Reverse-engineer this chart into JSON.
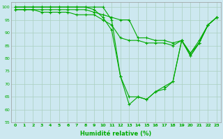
{
  "xlabel": "Humidité relative (%)",
  "background_color": "#cde8f0",
  "grid_color": "#aacfbf",
  "line_color": "#00aa00",
  "ylim": [
    55,
    102
  ],
  "xlim": [
    -0.5,
    23.5
  ],
  "yticks": [
    55,
    60,
    65,
    70,
    75,
    80,
    85,
    90,
    95,
    100
  ],
  "xticks": [
    0,
    1,
    2,
    3,
    4,
    5,
    6,
    7,
    8,
    9,
    10,
    11,
    12,
    13,
    14,
    15,
    16,
    17,
    18,
    19,
    20,
    21,
    22,
    23
  ],
  "lines": [
    [
      100,
      100,
      100,
      100,
      100,
      100,
      100,
      100,
      100,
      100,
      100,
      95,
      73,
      62,
      65,
      64,
      67,
      69,
      71,
      87,
      81,
      86,
      93,
      96
    ],
    [
      100,
      100,
      100,
      100,
      100,
      100,
      100,
      100,
      100,
      99,
      96,
      91,
      73,
      65,
      65,
      64,
      67,
      68,
      71,
      87,
      81,
      86,
      93,
      96
    ],
    [
      99,
      99,
      99,
      98,
      98,
      98,
      98,
      97,
      97,
      97,
      95,
      93,
      88,
      87,
      87,
      86,
      86,
      86,
      85,
      87,
      82,
      86,
      93,
      96
    ],
    [
      99,
      99,
      99,
      99,
      99,
      99,
      99,
      99,
      99,
      98,
      97,
      96,
      95,
      95,
      88,
      88,
      87,
      87,
      86,
      87,
      82,
      87,
      93,
      96
    ]
  ]
}
